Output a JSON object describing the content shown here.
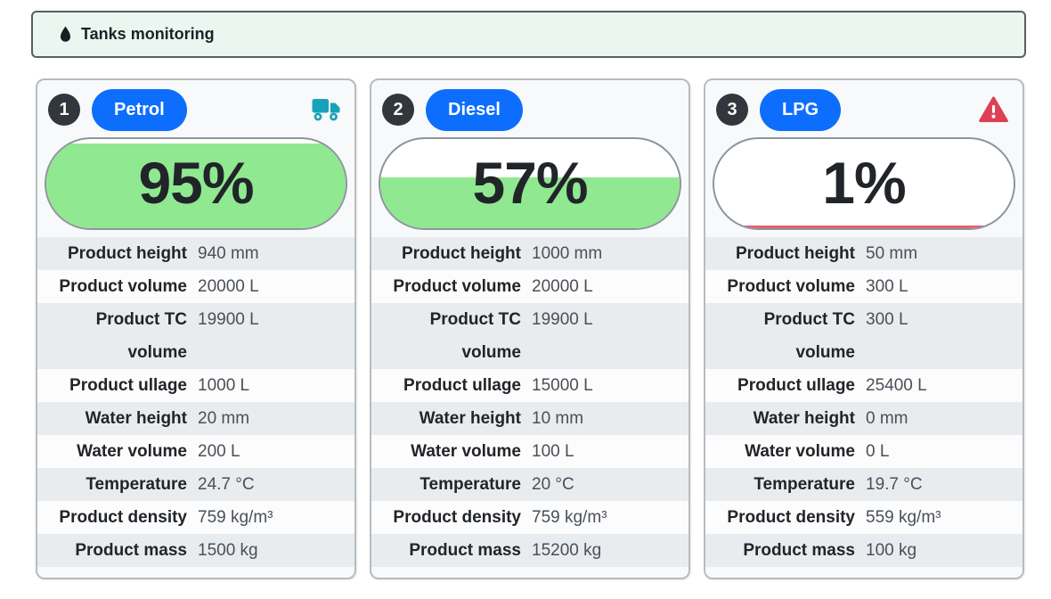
{
  "header": {
    "title": "Tanks monitoring",
    "icon": "droplet-icon"
  },
  "colors": {
    "header_bg": "#eaf6ef",
    "pill_blue": "#0d6efd",
    "badge_dark": "#31373d",
    "gauge_green": "#90e890",
    "gauge_red_low": "#e4606d",
    "truck_teal": "#17a2b8",
    "warning_red": "#dc4054"
  },
  "cards": [
    {
      "number": "1",
      "product": "Petrol",
      "status_icon": "truck-icon",
      "fill_percent": 95,
      "fill_text": "95%",
      "fill_color": "#90e890",
      "rows": [
        {
          "label": "Product height",
          "value": "940 mm"
        },
        {
          "label": "Product volume",
          "value": "20000 L"
        },
        {
          "label": "Product TC\nvolume",
          "value": "19900 L"
        },
        {
          "label": "Product ullage",
          "value": "1000 L"
        },
        {
          "label": "Water height",
          "value": "20 mm"
        },
        {
          "label": "Water volume",
          "value": "200 L"
        },
        {
          "label": "Temperature",
          "value": "24.7 °C"
        },
        {
          "label": "Product density",
          "value": "759 kg/m³"
        },
        {
          "label": "Product mass",
          "value": "1500 kg"
        }
      ]
    },
    {
      "number": "2",
      "product": "Diesel",
      "status_icon": null,
      "fill_percent": 57,
      "fill_text": "57%",
      "fill_color": "#90e890",
      "rows": [
        {
          "label": "Product height",
          "value": "1000 mm"
        },
        {
          "label": "Product volume",
          "value": "20000 L"
        },
        {
          "label": "Product TC\nvolume",
          "value": "19900 L"
        },
        {
          "label": "Product ullage",
          "value": "15000 L"
        },
        {
          "label": "Water height",
          "value": "10 mm"
        },
        {
          "label": "Water volume",
          "value": "100 L"
        },
        {
          "label": "Temperature",
          "value": "20 °C"
        },
        {
          "label": "Product density",
          "value": "759 kg/m³"
        },
        {
          "label": "Product mass",
          "value": "15200 kg"
        }
      ]
    },
    {
      "number": "3",
      "product": "LPG",
      "status_icon": "warning-icon",
      "fill_percent": 1,
      "fill_text": "1%",
      "fill_color": "#e4606d",
      "rows": [
        {
          "label": "Product height",
          "value": "50 mm"
        },
        {
          "label": "Product volume",
          "value": "300 L"
        },
        {
          "label": "Product TC\nvolume",
          "value": "300 L"
        },
        {
          "label": "Product ullage",
          "value": "25400 L"
        },
        {
          "label": "Water height",
          "value": "0 mm"
        },
        {
          "label": "Water volume",
          "value": "0 L"
        },
        {
          "label": "Temperature",
          "value": "19.7 °C"
        },
        {
          "label": "Product density",
          "value": "559 kg/m³"
        },
        {
          "label": "Product mass",
          "value": "100 kg"
        }
      ]
    }
  ]
}
